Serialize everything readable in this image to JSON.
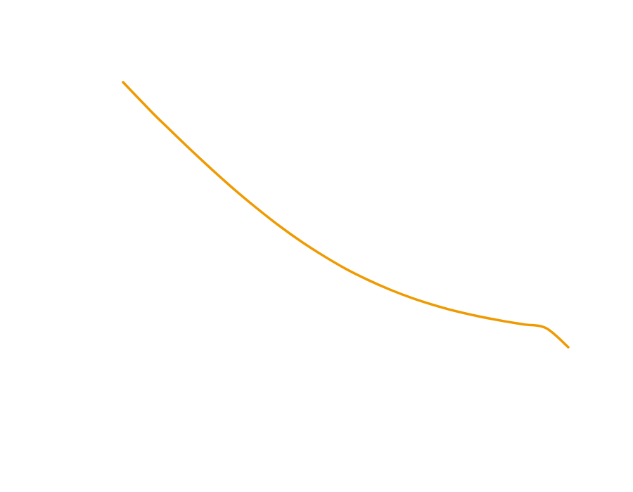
{
  "chart_data": {
    "type": "line",
    "title": "",
    "xlabel": "",
    "ylabel": "",
    "grid": false,
    "axes_visible": false,
    "xlim": [
      0,
      1
    ],
    "ylim": [
      0,
      1
    ],
    "series": [
      {
        "color": "#ee9a00",
        "x": [
          0.0,
          0.0675,
          0.1,
          0.15,
          0.2,
          0.25,
          0.3,
          0.35,
          0.4,
          0.45,
          0.5,
          0.55,
          0.6,
          0.65,
          0.7,
          0.75,
          0.8,
          0.85,
          0.9,
          0.95,
          1.0
        ],
        "y": [
          1.0,
          0.882,
          0.829,
          0.748,
          0.67,
          0.595,
          0.525,
          0.459,
          0.399,
          0.345,
          0.296,
          0.254,
          0.217,
          0.185,
          0.158,
          0.135,
          0.116,
          0.1,
          0.086,
          0.072,
          0.0
        ]
      }
    ]
  }
}
